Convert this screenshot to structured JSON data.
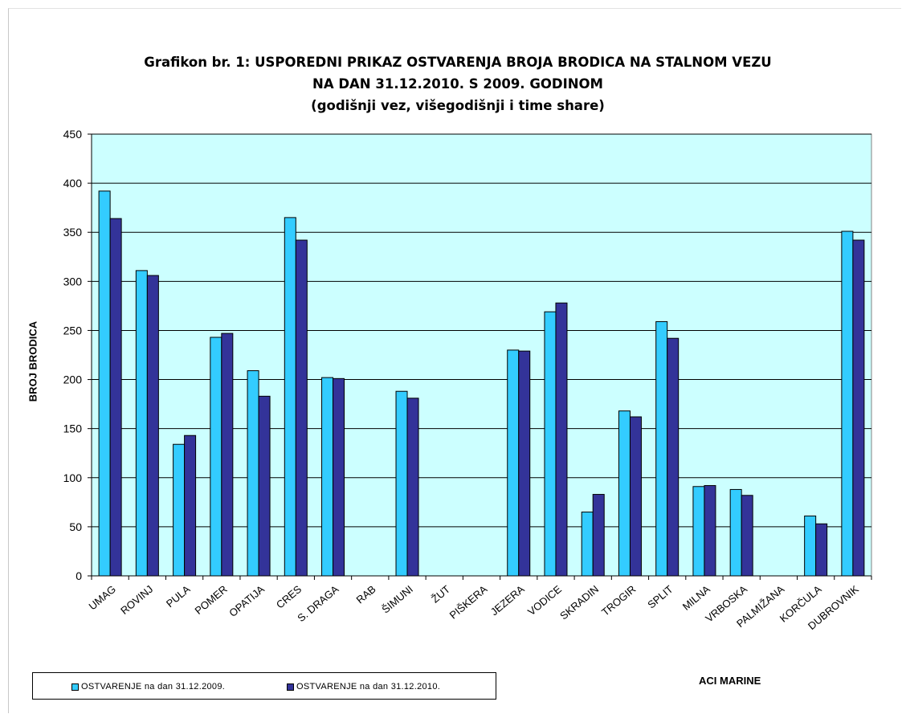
{
  "chart_data": {
    "type": "bar",
    "title_lines": [
      "Grafikon br. 1: USPOREDNI PRIKAZ OSTVARENJA BROJA BRODICA NA STALNOM VEZU",
      "NA DAN 31.12.2010. S 2009. GODINOM",
      "(godišnji vez, višegodišnji i time share)"
    ],
    "xlabel": "ACI MARINE",
    "ylabel": "BROJ BRODICA",
    "ylim": [
      0,
      450
    ],
    "ytick_step": 50,
    "yticks": [
      "0",
      "50",
      "100",
      "150",
      "200",
      "250",
      "300",
      "350",
      "400",
      "450"
    ],
    "grid": true,
    "legend_position": "bottom-left",
    "plot_background": "#ccffff",
    "categories": [
      "UMAG",
      "ROVINJ",
      "PULA",
      "POMER",
      "OPATIJA",
      "CRES",
      "S. DRAGA",
      "RAB",
      "ŠIMUNI",
      "ŽUT",
      "PIŠKERA",
      "JEZERA",
      "VODICE",
      "SKRADIN",
      "TROGIR",
      "SPLIT",
      "MILNA",
      "VRBOSKA",
      "PALMIŽANA",
      "KORČULA",
      "DUBROVNIK"
    ],
    "series": [
      {
        "name": "OSTVARENJE  na dan 31.12.2009.",
        "color": "#33ccff",
        "values": [
          392,
          311,
          134,
          243,
          209,
          365,
          202,
          0,
          188,
          0,
          0,
          230,
          269,
          65,
          168,
          259,
          91,
          88,
          0,
          61,
          351
        ]
      },
      {
        "name": "OSTVARENJE na dan 31.12.2010.",
        "color": "#333399",
        "values": [
          364,
          306,
          143,
          247,
          183,
          342,
          201,
          0,
          181,
          0,
          0,
          229,
          278,
          83,
          162,
          242,
          92,
          82,
          0,
          53,
          342
        ]
      }
    ]
  }
}
